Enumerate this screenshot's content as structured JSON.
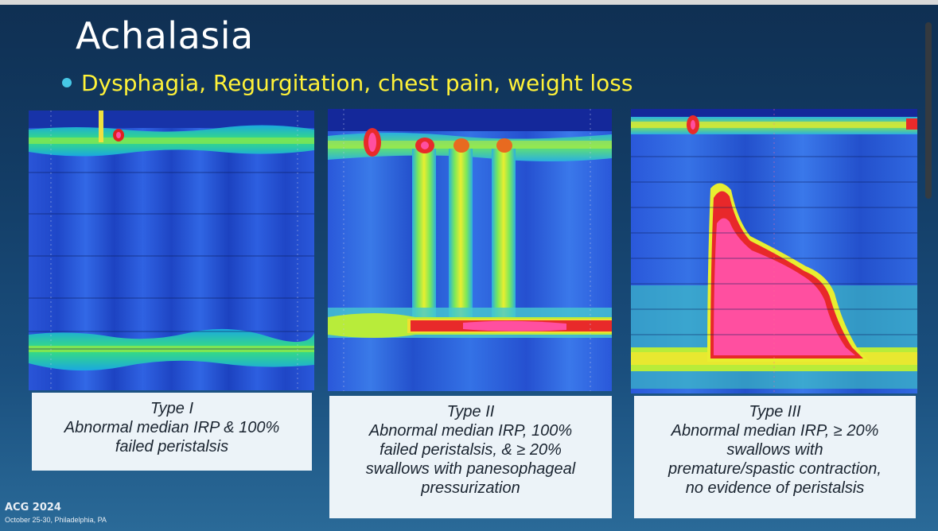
{
  "slide": {
    "title": "Achalasia",
    "bullet": "Dysphagia, Regurgitation, chest pain, weight loss",
    "colors": {
      "background": "#133d66",
      "title": "#ffffff",
      "bullet_text": "#fff238",
      "bullet_dot": "#47c8e6",
      "caption_bg": "#ecf3f8"
    }
  },
  "panels": [
    {
      "image": "high-resolution-manometry-topography-type-i",
      "caption_lines": [
        "Type I",
        "Abnormal median IRP & 100%",
        "failed peristalsis"
      ]
    },
    {
      "image": "high-resolution-manometry-topography-type-ii",
      "caption_lines": [
        "Type II",
        "Abnormal median IRP, 100%",
        "failed peristalsis, & ≥ 20%",
        "swallows with panesophageal",
        "pressurization"
      ]
    },
    {
      "image": "high-resolution-manometry-topography-type-iii",
      "caption_lines": [
        "Type III",
        "Abnormal median IRP, ≥ 20%",
        "swallows with",
        "premature/spastic contraction,",
        "no evidence of peristalsis"
      ]
    }
  ],
  "footer": {
    "logo_text": "ACG 2024",
    "dates": "October 25-30, Philadelphia, PA"
  }
}
